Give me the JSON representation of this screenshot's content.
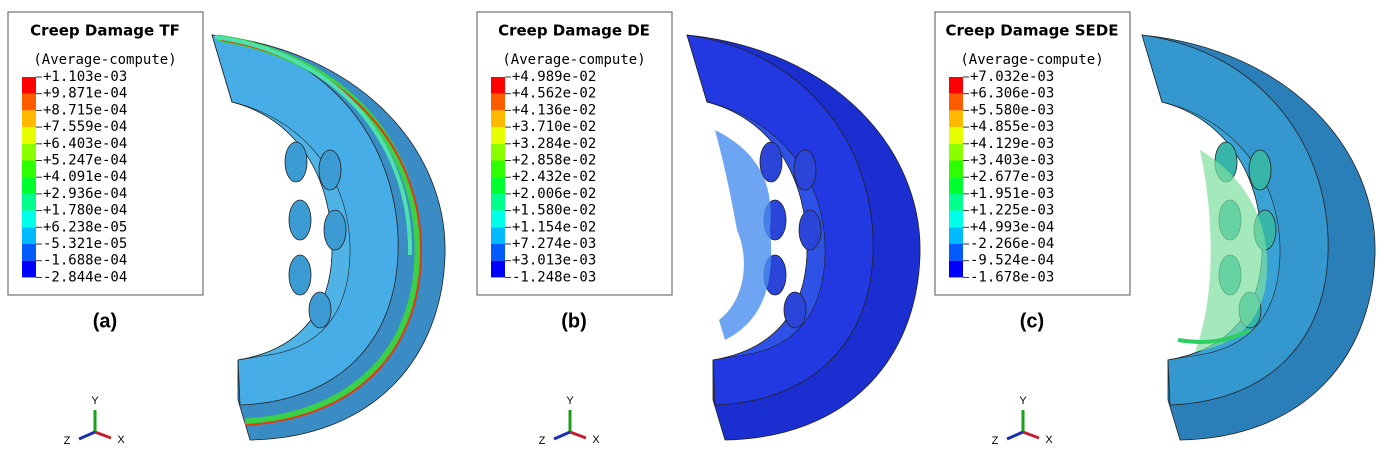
{
  "panels": [
    {
      "title": "Creep Damage TF",
      "subtitle": "(Average-compute)",
      "legend": [
        "+1.103e-03",
        "+9.871e-04",
        "+8.715e-04",
        "+7.559e-04",
        "+6.403e-04",
        "+5.247e-04",
        "+4.091e-04",
        "+2.936e-04",
        "+1.780e-04",
        "+6.238e-05",
        "-5.321e-05",
        "-1.688e-04",
        "-2.844e-04"
      ],
      "label": "(a)",
      "axes": {
        "y": "Y",
        "x": "X",
        "z": "Z"
      }
    },
    {
      "title": "Creep Damage DE",
      "subtitle": "(Average-compute)",
      "legend": [
        "+4.989e-02",
        "+4.562e-02",
        "+4.136e-02",
        "+3.710e-02",
        "+3.284e-02",
        "+2.858e-02",
        "+2.432e-02",
        "+2.006e-02",
        "+1.580e-02",
        "+1.154e-02",
        "+7.274e-03",
        "+3.013e-03",
        "-1.248e-03"
      ],
      "label": "(b)",
      "axes": {
        "y": "Y",
        "x": "X",
        "z": "Z"
      }
    },
    {
      "title": "Creep Damage SEDE",
      "subtitle": "(Average-compute)",
      "legend": [
        "+7.032e-03",
        "+6.306e-03",
        "+5.580e-03",
        "+4.855e-03",
        "+4.129e-03",
        "+3.403e-03",
        "+2.677e-03",
        "+1.951e-03",
        "+1.225e-03",
        "+4.993e-04",
        "-2.266e-04",
        "-9.524e-04",
        "-1.678e-03"
      ],
      "label": "(c)",
      "axes": {
        "y": "Y",
        "x": "X",
        "z": "Z"
      }
    }
  ]
}
